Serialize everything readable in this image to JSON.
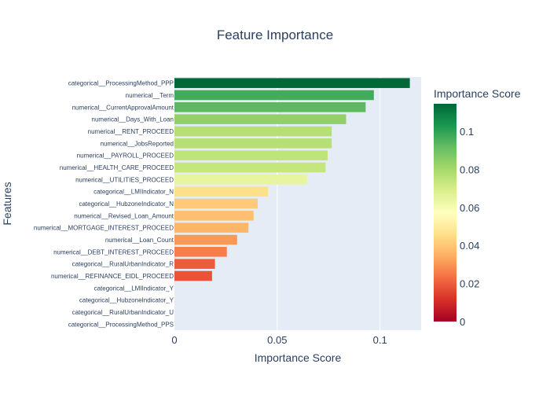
{
  "chart_data": {
    "type": "bar",
    "orientation": "horizontal",
    "title": "Feature Importance",
    "xlabel": "Importance Score",
    "ylabel": "Features",
    "xlim": [
      0,
      0.12
    ],
    "x_ticks": [
      0,
      0.05,
      0.1
    ],
    "x_tick_labels": [
      "0",
      "0.05",
      "0.1"
    ],
    "grid": true,
    "legend": "none",
    "colorbar": {
      "title": "Importance Score",
      "colorscale": "RdYlGn",
      "range": [
        0,
        0.1145
      ],
      "ticks": [
        0,
        0.02,
        0.04,
        0.06,
        0.08,
        0.1
      ],
      "tick_labels": [
        "0",
        "0.02",
        "0.04",
        "0.06",
        "0.08",
        "0.1"
      ],
      "placement": "right"
    },
    "categories": [
      "categorical__ProcessingMethod_PPP",
      "numerical__Term",
      "numerical__CurrentApprovalAmount",
      "numerical__Days_With_Loan",
      "numerical__RENT_PROCEED",
      "numerical__JobsReported",
      "numerical__PAYROLL_PROCEED",
      "numerical__HEALTH_CARE_PROCEED",
      "numerical__UTILITIES_PROCEED",
      "categorical__LMIIndicator_N",
      "categorical__HubzoneIndicator_N",
      "numerical__Revised_Loan_Amount",
      "numerical__MORTGAGE_INTEREST_PROCEED",
      "numerical__Loan_Count",
      "numerical__DEBT_INTEREST_PROCEED",
      "categorical__RuralUrbanIndicator_R",
      "numerical__REFINANCE_EIDL_PROCEED",
      "categorical__LMIIndicator_Y",
      "categorical__HubzoneIndicator_Y",
      "categorical__RuralUrbanIndicator_U",
      "categorical__ProcessingMethod_PPS"
    ],
    "values": [
      0.1145,
      0.097,
      0.093,
      0.0835,
      0.0765,
      0.0765,
      0.0745,
      0.0735,
      0.0645,
      0.0455,
      0.0405,
      0.0385,
      0.036,
      0.0305,
      0.0255,
      0.0197,
      0.0183,
      0,
      0,
      0,
      0
    ]
  }
}
